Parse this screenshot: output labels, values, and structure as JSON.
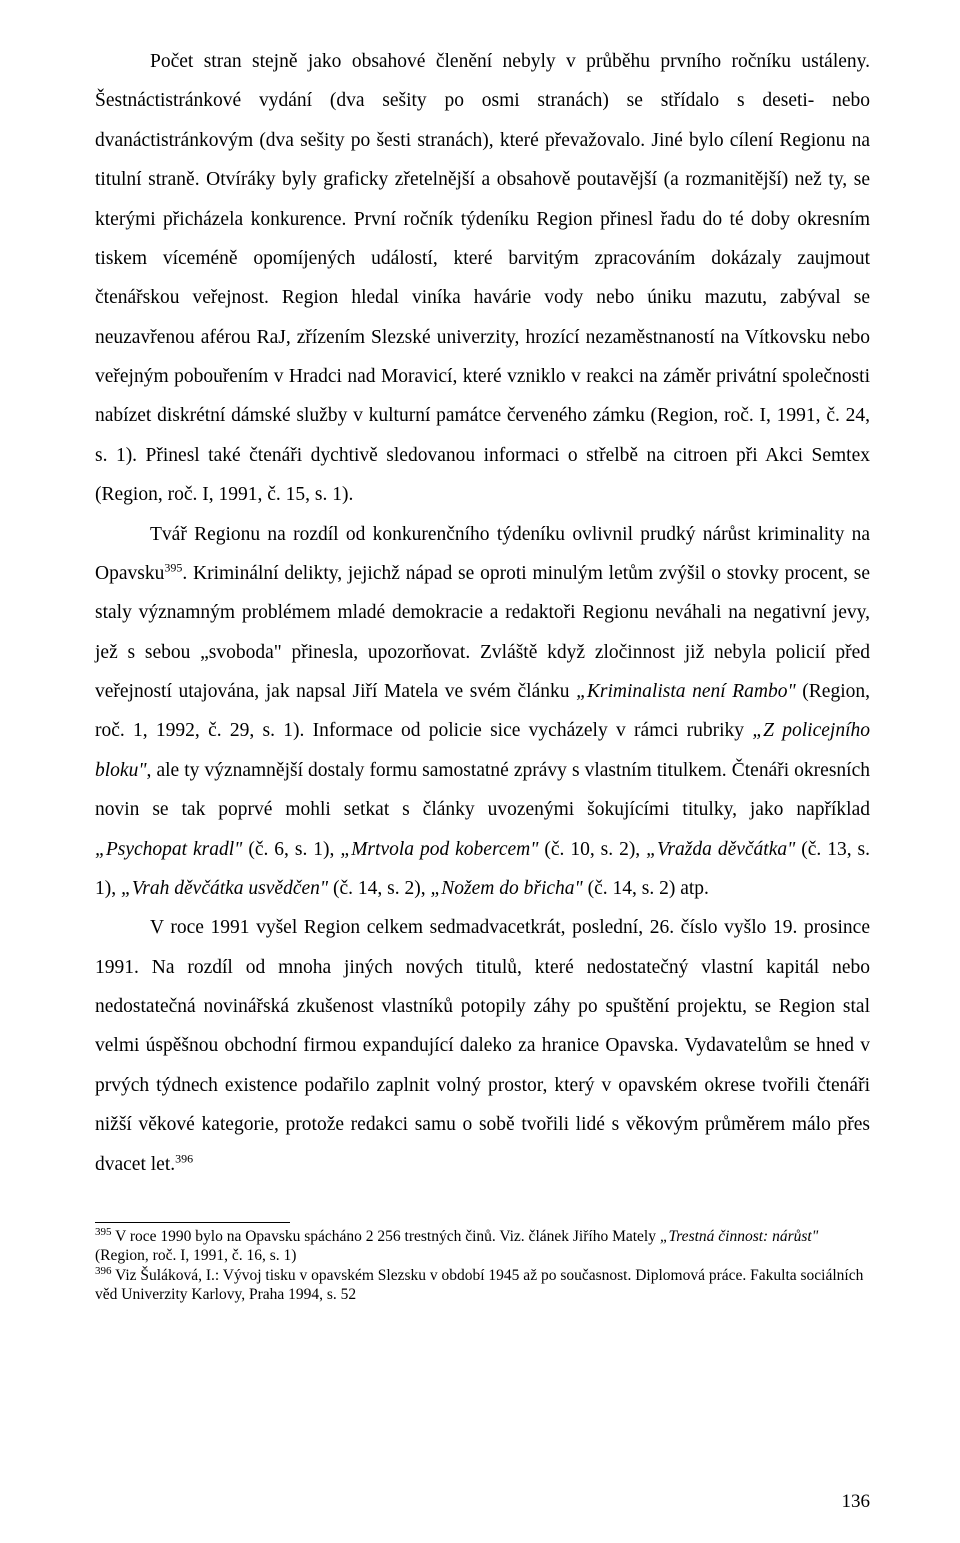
{
  "body": {
    "p1_part1": "Počet stran stejně jako obsahové členění nebyly v průběhu prvního ročníku ustáleny. Šestnáctistránkové vydání (dva sešity po osmi stranách) se střídalo s deseti- nebo dvanáctistránkovým (dva sešity po šesti stranách), které převažovalo. Jiné bylo cílení Regionu na titulní straně. Otvíráky byly graficky zřetelnější a obsahově poutavější (a rozmanitější) než ty, se kterými přicházela konkurence. První ročník týdeníku Region přinesl řadu do té doby okresním tiskem víceméně opomíjených událostí, které barvitým zpracováním dokázaly zaujmout čtenářskou veřejnost. Region hledal viníka havárie vody nebo úniku mazutu, zabýval se neuzavřenou aférou RaJ, zřízením Slezské univerzity, hrozící nezaměstnaností na Vítkovsku nebo veřejným pobouřením v Hradci nad Moravicí, které vzniklo v reakci na záměr privátní společnosti nabízet diskrétní dámské služby v kulturní památce červeného zámku (Region, roč. I, 1991, č. 24, s. 1). Přinesl také čtenáři dychtivě sledovanou informaci o střelbě na citroen při Akci Semtex (Region, roč. I, 1991, č. 15, s. 1).",
    "p2_part1": "Tvář Regionu na rozdíl od konkurenčního týdeníku ovlivnil prudký nárůst kriminality na Opavsku",
    "p2_sup1": "395",
    "p2_part2": ". Kriminální delikty, jejichž nápad se oproti minulým letům zvýšil o stovky procent, se staly významným problémem mladé demokracie a redaktoři Regionu neváhali na negativní jevy, jež s sebou „svoboda\" přinesla, upozorňovat. Zvláště když zločinnost již nebyla policií před veřejností utajována, jak napsal Jiří Matela ve svém článku ",
    "p2_italic1": "„Kriminalista není Rambo\"",
    "p2_part3": " (Region, roč. 1, 1992, č. 29, s. 1). Informace od policie sice vycházely v rámci rubriky ",
    "p2_italic2": "„Z policejního bloku\"",
    "p2_part4": ", ale ty významnější dostaly formu samostatné zprávy s vlastním titulkem. Čtenáři okresních novin se tak poprvé mohli setkat s články uvozenými šokujícími titulky, jako například ",
    "p2_italic3": "„Psychopat kradl\"",
    "p2_part5": " (č. 6, s. 1), ",
    "p2_italic4": "„Mrtvola pod kobercem\"",
    "p2_part6": " (č. 10, s. 2), ",
    "p2_italic5": "„Vražda děvčátka\"",
    "p2_part7": " (č. 13, s. 1), ",
    "p2_italic6": "„Vrah děvčátka usvědčen\"",
    "p2_part8": " (č. 14, s. 2), ",
    "p2_italic7": "„Nožem do břicha\"",
    "p2_part9": " (č. 14, s. 2) atp.",
    "p3_part1": "V roce 1991 vyšel Region celkem sedmadvacetkrát, poslední, 26. číslo vyšlo 19. prosince 1991. Na rozdíl od mnoha jiných nových titulů, které nedostatečný vlastní kapitál nebo nedostatečná novinářská zkušenost vlastníků potopily záhy po spuštění projektu, se Region stal velmi úspěšnou obchodní firmou expandující daleko za hranice Opavska. Vydavatelům se hned v prvých týdnech existence podařilo zaplnit volný prostor, který v opavském okrese tvořili čtenáři nižší věkové kategorie, protože redakci samu o sobě tvořili lidé s věkovým průměrem málo přes dvacet let.",
    "p3_sup1": "396"
  },
  "footnotes": {
    "f1_num": "395",
    "f1_part1": " V roce 1990 bylo na Opavsku spácháno 2 256 trestných činů. Viz. článek Jiřího Mately ",
    "f1_italic1": "„Trestná činnost: nárůst\"",
    "f1_part2": " (Region, roč. I, 1991, č. 16, s. 1)",
    "f2_num": "396",
    "f2_part1": " Viz Šuláková, I.: Vývoj tisku v opavském Slezsku v období 1945 až po současnost. Diplomová práce. Fakulta sociálních věd Univerzity Karlovy, Praha 1994, s. 52"
  },
  "page_number": "136"
}
